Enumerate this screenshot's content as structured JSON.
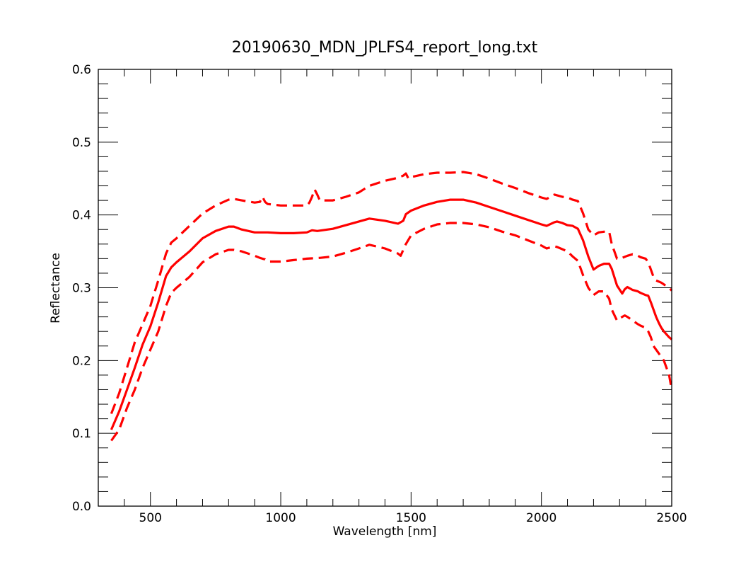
{
  "chart_data": {
    "type": "line",
    "title": "20190630_MDN_JPLFS4_report_long.txt",
    "xlabel": "Wavelength [nm]",
    "ylabel": "Reflectance",
    "xlim": [
      300,
      2500
    ],
    "ylim": [
      0.0,
      0.6
    ],
    "x_ticks": [
      500,
      1000,
      1500,
      2000,
      2500
    ],
    "x_tick_labels": [
      "500",
      "1000",
      "1500",
      "2000",
      "2500"
    ],
    "y_ticks": [
      0.0,
      0.1,
      0.2,
      0.3,
      0.4,
      0.5,
      0.6
    ],
    "y_tick_labels": [
      "0.0",
      "0.1",
      "0.2",
      "0.3",
      "0.4",
      "0.5",
      "0.6"
    ],
    "grid": false,
    "legend": "none",
    "colors": {
      "series": "#ff0000",
      "axes": "#000000",
      "background": "#ffffff"
    },
    "series": [
      {
        "style": "solid",
        "x": [
          350,
          380,
          410,
          440,
          470,
          500,
          530,
          560,
          580,
          600,
          650,
          700,
          750,
          800,
          820,
          850,
          900,
          950,
          1000,
          1050,
          1100,
          1120,
          1140,
          1200,
          1250,
          1300,
          1340,
          1400,
          1450,
          1470,
          1480,
          1500,
          1550,
          1600,
          1650,
          1700,
          1750,
          1800,
          1850,
          1900,
          1950,
          2000,
          2020,
          2050,
          2060,
          2080,
          2100,
          2120,
          2140,
          2160,
          2180,
          2200,
          2220,
          2240,
          2260,
          2270,
          2290,
          2310,
          2320,
          2330,
          2350,
          2370,
          2380,
          2400,
          2410,
          2420,
          2430,
          2440,
          2450,
          2460,
          2470,
          2480,
          2490,
          2500
        ],
        "y": [
          0.105,
          0.13,
          0.16,
          0.19,
          0.222,
          0.247,
          0.28,
          0.316,
          0.328,
          0.335,
          0.35,
          0.368,
          0.378,
          0.384,
          0.384,
          0.38,
          0.376,
          0.376,
          0.375,
          0.375,
          0.376,
          0.379,
          0.378,
          0.381,
          0.386,
          0.391,
          0.395,
          0.392,
          0.388,
          0.392,
          0.401,
          0.406,
          0.413,
          0.418,
          0.421,
          0.421,
          0.417,
          0.411,
          0.405,
          0.399,
          0.393,
          0.387,
          0.385,
          0.39,
          0.391,
          0.389,
          0.386,
          0.385,
          0.381,
          0.365,
          0.343,
          0.325,
          0.33,
          0.333,
          0.333,
          0.326,
          0.303,
          0.292,
          0.298,
          0.301,
          0.297,
          0.295,
          0.293,
          0.29,
          0.289,
          0.28,
          0.27,
          0.26,
          0.252,
          0.245,
          0.24,
          0.236,
          0.232,
          0.229
        ]
      },
      {
        "style": "dashed",
        "x": [
          350,
          380,
          410,
          440,
          470,
          500,
          530,
          560,
          580,
          600,
          650,
          700,
          750,
          800,
          820,
          850,
          900,
          920,
          930,
          940,
          950,
          1000,
          1050,
          1100,
          1110,
          1120,
          1130,
          1140,
          1150,
          1200,
          1250,
          1300,
          1340,
          1400,
          1450,
          1470,
          1480,
          1490,
          1500,
          1550,
          1600,
          1650,
          1700,
          1750,
          1800,
          1850,
          1900,
          1950,
          2000,
          2020,
          2050,
          2060,
          2080,
          2100,
          2120,
          2140,
          2160,
          2180,
          2200,
          2220,
          2240,
          2260,
          2270,
          2290,
          2310,
          2330,
          2350,
          2370,
          2380,
          2400,
          2410,
          2420,
          2430,
          2440,
          2460,
          2480,
          2490,
          2500
        ],
        "y": [
          0.127,
          0.155,
          0.19,
          0.225,
          0.25,
          0.275,
          0.31,
          0.347,
          0.362,
          0.368,
          0.385,
          0.402,
          0.413,
          0.421,
          0.422,
          0.42,
          0.417,
          0.418,
          0.425,
          0.418,
          0.415,
          0.413,
          0.413,
          0.413,
          0.417,
          0.425,
          0.435,
          0.428,
          0.42,
          0.42,
          0.425,
          0.431,
          0.44,
          0.447,
          0.451,
          0.454,
          0.457,
          0.45,
          0.452,
          0.456,
          0.458,
          0.458,
          0.459,
          0.456,
          0.45,
          0.443,
          0.437,
          0.43,
          0.424,
          0.422,
          0.428,
          0.427,
          0.425,
          0.424,
          0.421,
          0.419,
          0.402,
          0.38,
          0.372,
          0.376,
          0.377,
          0.377,
          0.36,
          0.34,
          0.341,
          0.344,
          0.346,
          0.344,
          0.342,
          0.34,
          0.335,
          0.325,
          0.315,
          0.31,
          0.307,
          0.302,
          0.3,
          0.296
        ]
      },
      {
        "style": "dashed",
        "x": [
          350,
          380,
          410,
          440,
          470,
          500,
          530,
          560,
          580,
          600,
          650,
          700,
          750,
          800,
          820,
          850,
          900,
          920,
          930,
          940,
          950,
          1000,
          1050,
          1100,
          1150,
          1200,
          1250,
          1300,
          1340,
          1400,
          1450,
          1460,
          1470,
          1480,
          1500,
          1550,
          1600,
          1650,
          1700,
          1750,
          1800,
          1850,
          1900,
          1950,
          2000,
          2020,
          2050,
          2060,
          2080,
          2100,
          2120,
          2140,
          2160,
          2180,
          2200,
          2220,
          2240,
          2260,
          2270,
          2290,
          2310,
          2320,
          2330,
          2350,
          2370,
          2380,
          2400,
          2410,
          2420,
          2430,
          2440,
          2450,
          2460,
          2470,
          2480,
          2490,
          2500
        ],
        "y": [
          0.09,
          0.105,
          0.135,
          0.16,
          0.19,
          0.215,
          0.24,
          0.275,
          0.293,
          0.3,
          0.315,
          0.335,
          0.346,
          0.352,
          0.352,
          0.35,
          0.344,
          0.341,
          0.34,
          0.339,
          0.336,
          0.336,
          0.338,
          0.34,
          0.341,
          0.343,
          0.348,
          0.354,
          0.359,
          0.354,
          0.347,
          0.344,
          0.352,
          0.36,
          0.372,
          0.381,
          0.387,
          0.389,
          0.389,
          0.387,
          0.383,
          0.377,
          0.372,
          0.365,
          0.358,
          0.354,
          0.357,
          0.356,
          0.353,
          0.35,
          0.343,
          0.337,
          0.317,
          0.3,
          0.29,
          0.295,
          0.295,
          0.285,
          0.27,
          0.255,
          0.26,
          0.262,
          0.26,
          0.255,
          0.25,
          0.248,
          0.245,
          0.24,
          0.232,
          0.22,
          0.215,
          0.21,
          0.205,
          0.2,
          0.19,
          0.18,
          0.16
        ]
      }
    ]
  }
}
